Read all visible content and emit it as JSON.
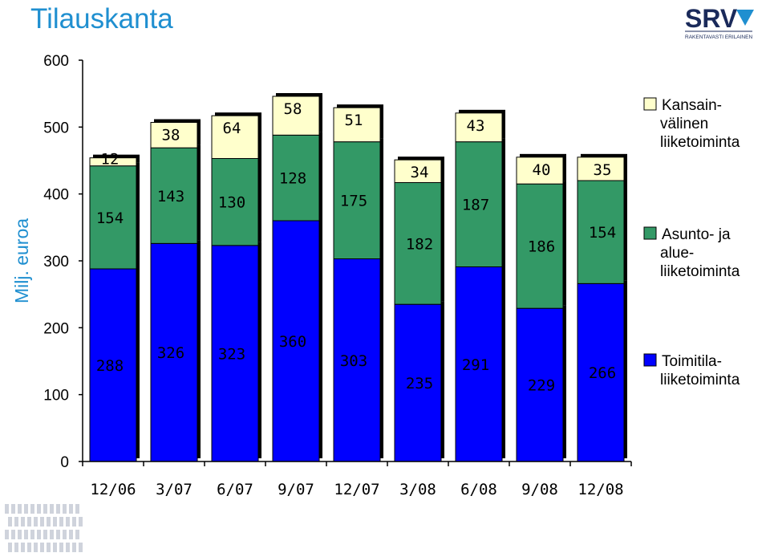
{
  "page": {
    "title": "Tilauskanta"
  },
  "logo": {
    "text": "SRV",
    "tagline": "RAKENTAVASTI ERILAINEN"
  },
  "chart_data": {
    "type": "bar",
    "stacked": true,
    "categories": [
      "12/06",
      "3/07",
      "6/07",
      "9/07",
      "12/07",
      "3/08",
      "6/08",
      "9/08",
      "12/08"
    ],
    "series": [
      {
        "name": "Toimitila-liiketoiminta",
        "legend_lines": [
          "Toimitila-",
          "liiketoiminta"
        ],
        "color": "#0000ff",
        "values": [
          288,
          326,
          323,
          360,
          303,
          235,
          291,
          229,
          266
        ]
      },
      {
        "name": "Asunto- ja alueliiketoiminta",
        "legend_lines": [
          "Asunto- ja",
          "alue-",
          "liiketoiminta"
        ],
        "color": "#339966",
        "values": [
          154,
          143,
          130,
          128,
          175,
          182,
          187,
          186,
          154
        ]
      },
      {
        "name": "Kansainvälinen liiketoiminta",
        "legend_lines": [
          "Kansain-",
          "välinen",
          "liiketoiminta"
        ],
        "color": "#ffffcc",
        "values": [
          12,
          38,
          64,
          58,
          51,
          34,
          43,
          40,
          35
        ]
      }
    ],
    "ylabel": "Milj. euroa",
    "ylim": [
      0,
      600
    ],
    "yticks": [
      0,
      100,
      200,
      300,
      400,
      500,
      600
    ],
    "grid": false,
    "legend_position": "right"
  }
}
